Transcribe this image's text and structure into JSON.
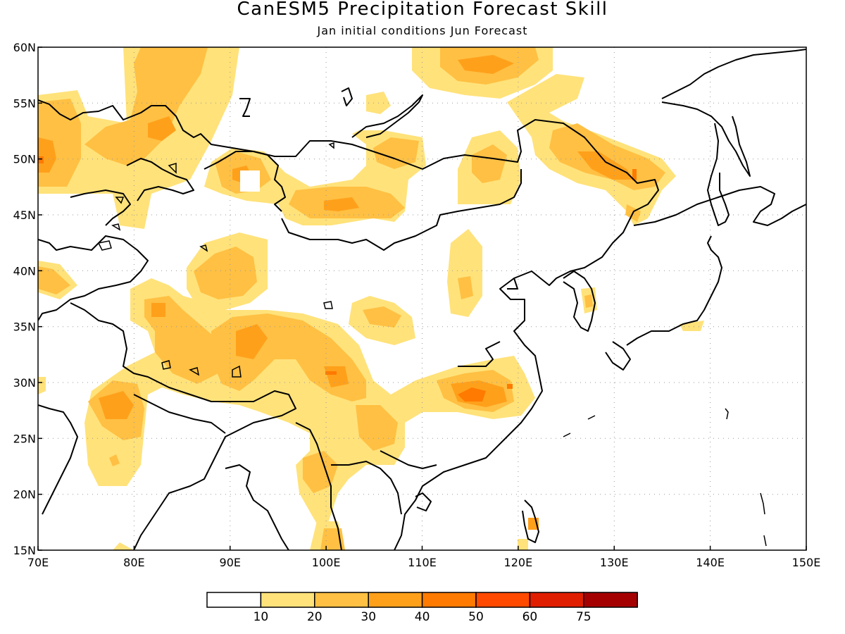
{
  "title": "CanESM5 Precipitation Forecast Skill",
  "subtitle": "Jan initial conditions  Jun Forecast",
  "map": {
    "lon_range": [
      70,
      150
    ],
    "lat_range": [
      15,
      60
    ],
    "lon_ticks": [
      "70E",
      "80E",
      "90E",
      "100E",
      "110E",
      "120E",
      "130E",
      "140E",
      "150E"
    ],
    "lat_ticks": [
      "15N",
      "20N",
      "25N",
      "30N",
      "35N",
      "40N",
      "45N",
      "50N",
      "55N",
      "60N"
    ],
    "grid": "dotted"
  },
  "colorbar": {
    "labels": [
      "10",
      "20",
      "30",
      "40",
      "50",
      "60",
      "75"
    ],
    "colors": [
      "#ffffff",
      "#ffe27a",
      "#ffc043",
      "#ffa01b",
      "#ff7a00",
      "#ff4a00",
      "#e01e00",
      "#a50000"
    ]
  }
}
